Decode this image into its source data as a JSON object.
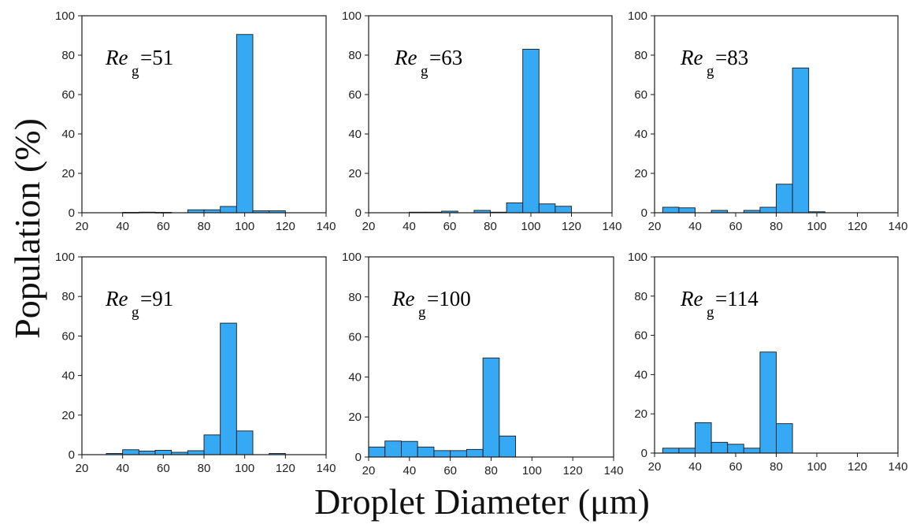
{
  "labels": {
    "xlabel": "Droplet Diameter (μm)",
    "ylabel": "Population (%)"
  },
  "colors": {
    "bar": "#36a9f4",
    "stroke": "#1a1a1a"
  },
  "chart_data": [
    {
      "type": "bar",
      "panel": "top-left",
      "annotation_main": "Re",
      "annotation_sub": "g",
      "annotation_value": "=51",
      "bin_width": 8,
      "x": [
        44,
        52,
        60,
        76,
        84,
        92,
        100,
        108,
        116
      ],
      "values": [
        0.2,
        0.3,
        0.2,
        1.5,
        1.5,
        3.2,
        90.5,
        1.0,
        1.0
      ],
      "xlim": [
        20,
        140
      ],
      "ylim": [
        0,
        100
      ],
      "xticks": [
        20,
        40,
        60,
        80,
        100,
        120,
        140
      ],
      "yticks": [
        0,
        20,
        40,
        60,
        80,
        100
      ]
    },
    {
      "type": "bar",
      "panel": "top-middle",
      "annotation_main": "Re",
      "annotation_sub": "g",
      "annotation_value": "=63",
      "bin_width": 8,
      "x": [
        44,
        52,
        60,
        76,
        84,
        92,
        100,
        108,
        116
      ],
      "values": [
        0.3,
        0.3,
        0.8,
        1.2,
        0.3,
        5.0,
        83.0,
        4.5,
        3.3
      ],
      "xlim": [
        20,
        140
      ],
      "ylim": [
        0,
        100
      ],
      "xticks": [
        20,
        40,
        60,
        80,
        100,
        120,
        140
      ],
      "yticks": [
        0,
        20,
        40,
        60,
        80,
        100
      ]
    },
    {
      "type": "bar",
      "panel": "top-right",
      "annotation_main": "Re",
      "annotation_sub": "g",
      "annotation_value": "=83",
      "bin_width": 8,
      "x": [
        28,
        36,
        52,
        68,
        76,
        84,
        92,
        100
      ],
      "values": [
        2.8,
        2.5,
        1.2,
        1.2,
        2.8,
        14.5,
        73.5,
        0.5
      ],
      "xlim": [
        20,
        140
      ],
      "ylim": [
        0,
        100
      ],
      "xticks": [
        20,
        40,
        60,
        80,
        100,
        120,
        140
      ],
      "yticks": [
        0,
        20,
        40,
        60,
        80,
        100
      ]
    },
    {
      "type": "bar",
      "panel": "bottom-left",
      "annotation_main": "Re",
      "annotation_sub": "g",
      "annotation_value": "=91",
      "bin_width": 8,
      "x": [
        36,
        44,
        52,
        60,
        68,
        76,
        84,
        92,
        100,
        116
      ],
      "values": [
        0.6,
        2.5,
        1.8,
        2.2,
        1.2,
        2.0,
        10.0,
        66.5,
        12.0,
        0.6
      ],
      "xlim": [
        20,
        140
      ],
      "ylim": [
        0,
        100
      ],
      "xticks": [
        20,
        40,
        60,
        80,
        100,
        120,
        140
      ],
      "yticks": [
        0,
        20,
        40,
        60,
        80,
        100
      ]
    },
    {
      "type": "bar",
      "panel": "bottom-middle",
      "annotation_main": "Re",
      "annotation_sub": "g",
      "annotation_value": "=100",
      "bin_width": 8,
      "x": [
        24,
        32,
        40,
        48,
        56,
        64,
        72,
        80,
        88
      ],
      "values": [
        5.0,
        8.0,
        7.8,
        5.0,
        3.2,
        3.2,
        3.8,
        49.5,
        10.5
      ],
      "xlim": [
        20,
        140
      ],
      "ylim": [
        0,
        100
      ],
      "xticks": [
        20,
        40,
        60,
        80,
        100,
        120,
        140
      ],
      "yticks": [
        0,
        20,
        40,
        60,
        80,
        100
      ]
    },
    {
      "type": "bar",
      "panel": "bottom-right",
      "annotation_main": "Re",
      "annotation_sub": "g",
      "annotation_value": "=114",
      "bin_width": 8,
      "x": [
        28,
        36,
        44,
        52,
        60,
        68,
        76,
        84
      ],
      "values": [
        2.5,
        2.5,
        15.5,
        5.5,
        4.5,
        2.5,
        51.5,
        15.0
      ],
      "xlim": [
        20,
        140
      ],
      "ylim": [
        0,
        100
      ],
      "xticks": [
        20,
        40,
        60,
        80,
        100,
        120,
        140
      ],
      "yticks": [
        0,
        20,
        40,
        60,
        80,
        100
      ]
    }
  ]
}
